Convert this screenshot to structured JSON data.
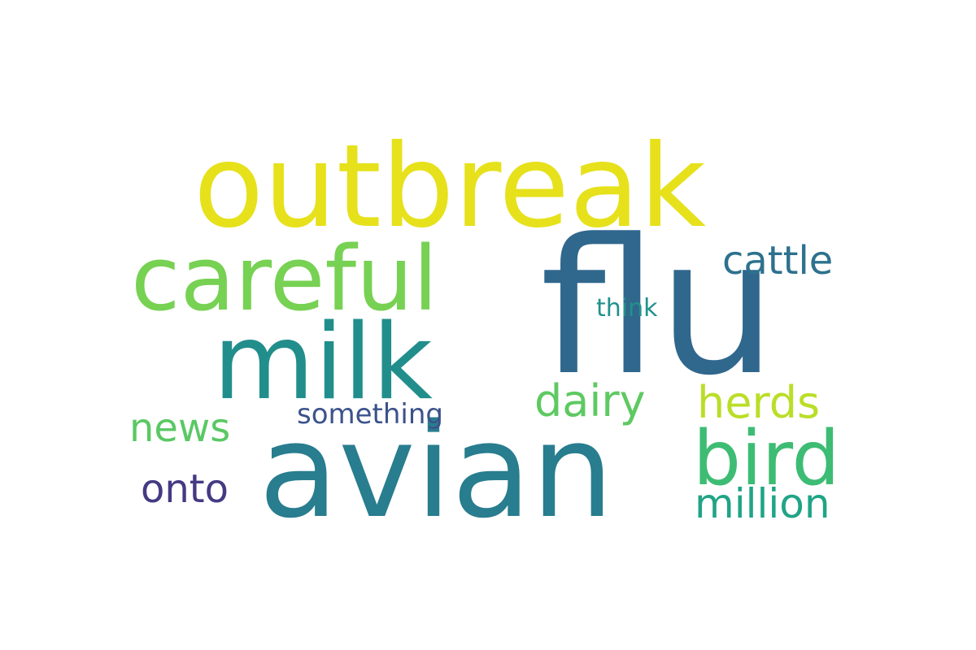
{
  "word_cloud": {
    "words": [
      {
        "id": "flu",
        "text": "flu",
        "color": "#30678d"
      },
      {
        "id": "outbreak",
        "text": "outbreak",
        "color": "#e6e11b"
      },
      {
        "id": "avian",
        "text": "avian",
        "color": "#287d8e"
      },
      {
        "id": "careful",
        "text": "careful",
        "color": "#77d153"
      },
      {
        "id": "milk",
        "text": "milk",
        "color": "#218e8c"
      },
      {
        "id": "bird",
        "text": "bird",
        "color": "#3dbc74"
      },
      {
        "id": "herds",
        "text": "herds",
        "color": "#bade28"
      },
      {
        "id": "dairy",
        "text": "dairy",
        "color": "#5ec962"
      },
      {
        "id": "cattle",
        "text": "cattle",
        "color": "#2d718e"
      },
      {
        "id": "million",
        "text": "million",
        "color": "#20a486"
      },
      {
        "id": "news",
        "text": "news",
        "color": "#5ac864"
      },
      {
        "id": "onto",
        "text": "onto",
        "color": "#443a83"
      },
      {
        "id": "think",
        "text": "think",
        "color": "#21918c"
      },
      {
        "id": "something",
        "text": "something",
        "color": "#3b528b"
      }
    ]
  }
}
